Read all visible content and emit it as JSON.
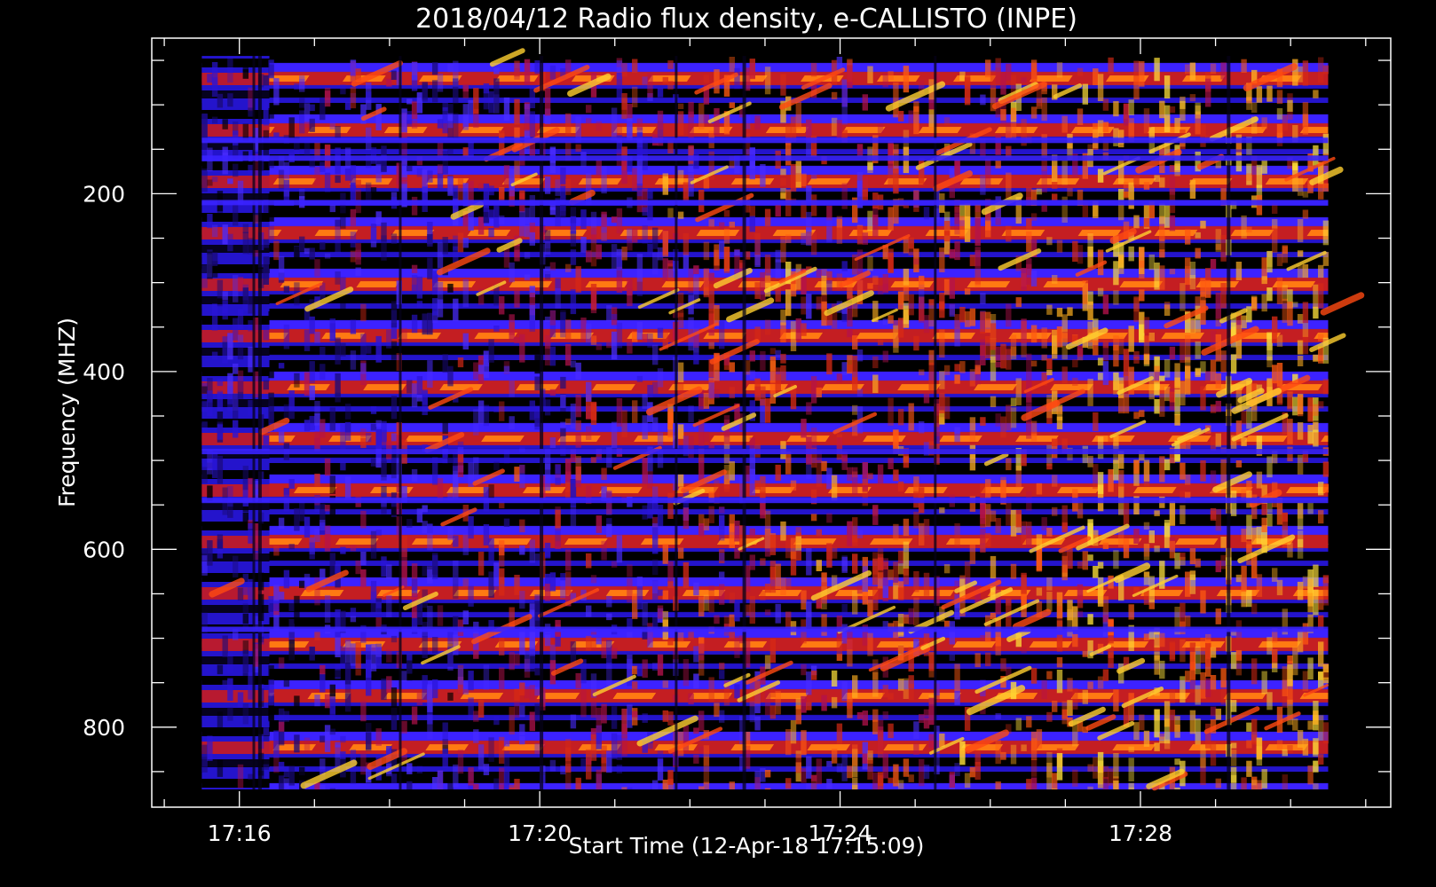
{
  "chart_data": {
    "type": "heatmap",
    "title": "2018/04/12  Radio flux density, e-CALLISTO (INPE)",
    "xlabel": "Start Time (12-Apr-18 17:15:09)",
    "ylabel": "Frequency (MHZ)",
    "x_start": "17:15:09",
    "x_data_range": [
      "17:15:30",
      "17:30:30"
    ],
    "xlim": [
      "17:14:50",
      "17:31:20"
    ],
    "x_major_ticks": [
      "17:16",
      "17:20",
      "17:24",
      "17:28"
    ],
    "x_tick_labels": [
      "17:16",
      "17:20",
      "17:24",
      "17:28"
    ],
    "y_data_range_mhz": [
      45,
      870
    ],
    "ylim_mhz": [
      25,
      890
    ],
    "y_inverted": true,
    "y_major_ticks": [
      200,
      400,
      600,
      800
    ],
    "y_tick_labels": [
      "200",
      "400",
      "600",
      "800"
    ],
    "colormap": [
      "#000000",
      "#1a0a7a",
      "#2b14d8",
      "#4a2cff",
      "#b4124c",
      "#d82a14",
      "#ff5a10",
      "#ffb020",
      "#ffe23a"
    ],
    "background": "#000000",
    "foreground": "#ffffff"
  }
}
